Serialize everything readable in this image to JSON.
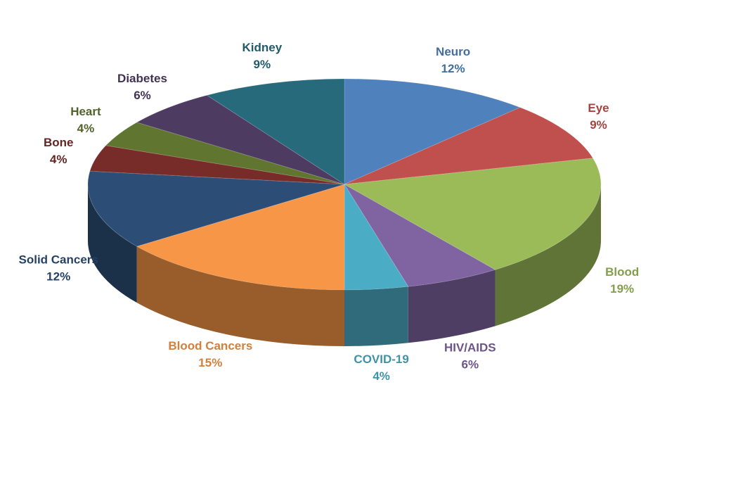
{
  "chart_data": {
    "type": "pie",
    "categories": [
      "Neuro",
      "Eye",
      "Blood",
      "HIV/AIDS",
      "COVID-19",
      "Blood Cancers",
      "Solid Cancers",
      "Bone",
      "Heart",
      "Diabetes",
      "Kidney"
    ],
    "values": [
      12,
      9,
      19,
      6,
      4,
      15,
      12,
      4,
      4,
      6,
      9
    ],
    "value_labels": [
      "12%",
      "9%",
      "19%",
      "6%",
      "4%",
      "15%",
      "12%",
      "4%",
      "4%",
      "6%",
      "9%"
    ],
    "colors": [
      "#4f81bd",
      "#c0504d",
      "#9bbb59",
      "#8064a2",
      "#4bacc6",
      "#f79646",
      "#2c4d75",
      "#772c2a",
      "#5f7530",
      "#4d3b62",
      "#276a7c"
    ]
  }
}
